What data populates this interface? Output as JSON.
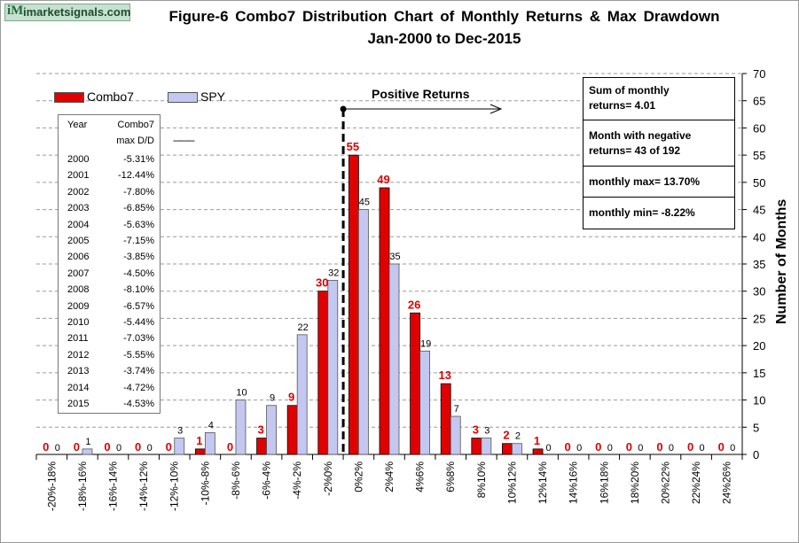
{
  "logo": {
    "mark": "iM",
    "text": "imarketsignals.com"
  },
  "chart_data": {
    "type": "bar",
    "title": "Figure-6  Combo7  Distribution  Chart  of  Monthly  Returns  &  Max  Drawdown",
    "subtitle": "Jan-2000 to Dec-2015",
    "ylabel": "Number of Months",
    "ylim": [
      0,
      70
    ],
    "yticks": [
      0,
      5,
      10,
      15,
      20,
      25,
      30,
      35,
      40,
      45,
      50,
      55,
      60,
      65,
      70
    ],
    "categories": [
      "-20%-18%",
      "-18%-16%",
      "-16%-14%",
      "-14%-12%",
      "-12%-10%",
      "-10%-8%",
      "-8%-6%",
      "-6%-4%",
      "-4%-2%",
      "-2%0%",
      "0%2%",
      "2%4%",
      "4%6%",
      "6%8%",
      "8%10%",
      "10%12%",
      "12%14%",
      "14%16%",
      "16%18%",
      "18%20%",
      "20%22%",
      "22%24%",
      "24%26%"
    ],
    "series": [
      {
        "name": "Combo7",
        "color": "#e00000",
        "label_color": "#e00000",
        "values": [
          0,
          0,
          0,
          0,
          0,
          1,
          0,
          3,
          9,
          30,
          55,
          49,
          26,
          13,
          3,
          2,
          1,
          0,
          0,
          0,
          0,
          0,
          0
        ]
      },
      {
        "name": "SPY",
        "color": "#c4c8f0",
        "label_color": "#000000",
        "values": [
          0,
          1,
          0,
          0,
          3,
          4,
          10,
          9,
          22,
          32,
          45,
          35,
          19,
          7,
          3,
          2,
          0,
          0,
          0,
          0,
          0,
          0,
          0
        ]
      }
    ],
    "annotation": "Positive Returns",
    "grid": "horizontal dashed",
    "legend": "top-left"
  },
  "drawdown_table": {
    "header_year": "Year",
    "header_combo": "Combo7",
    "header_sub": "max D/D",
    "dashes": "---------",
    "rows": [
      {
        "year": "2000",
        "value": "-5.31%"
      },
      {
        "year": "2001",
        "value": "-12.44%"
      },
      {
        "year": "2002",
        "value": "-7.80%"
      },
      {
        "year": "2003",
        "value": "-6.85%"
      },
      {
        "year": "2004",
        "value": "-5.63%"
      },
      {
        "year": "2005",
        "value": "-7.15%"
      },
      {
        "year": "2006",
        "value": "-3.85%"
      },
      {
        "year": "2007",
        "value": "-4.50%"
      },
      {
        "year": "2008",
        "value": "-8.10%"
      },
      {
        "year": "2009",
        "value": "-6.57%"
      },
      {
        "year": "2010",
        "value": "-5.44%"
      },
      {
        "year": "2011",
        "value": "-7.03%"
      },
      {
        "year": "2012",
        "value": "-5.55%"
      },
      {
        "year": "2013",
        "value": "-3.74%"
      },
      {
        "year": "2014",
        "value": "-4.72%"
      },
      {
        "year": "2015",
        "value": "-4.53%"
      }
    ]
  },
  "stats": {
    "sum_line1": "Sum of monthly",
    "sum_line2": "returns= 4.01",
    "neg_line1": "Month with negative",
    "neg_line2": "returns=  43 of 192",
    "max": "monthly max= 13.70%",
    "min": "monthly min= -8.22%"
  }
}
